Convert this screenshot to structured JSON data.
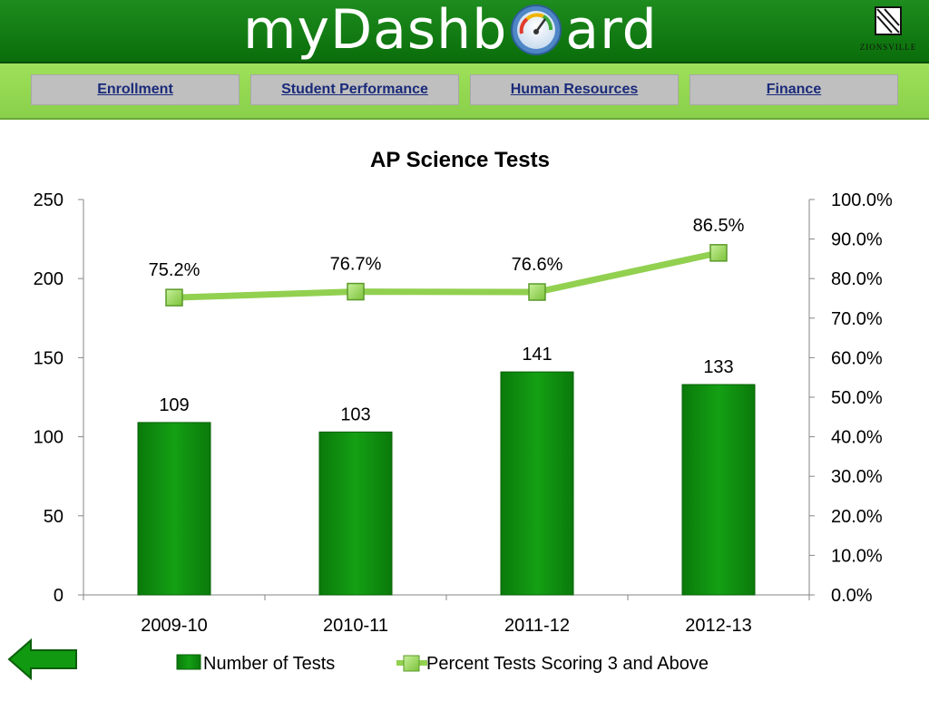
{
  "header": {
    "logo_before": "myDashb",
    "logo_after": "ard",
    "seal_text": "ZIONSVILLE"
  },
  "nav": {
    "items": [
      {
        "label": "Enrollment"
      },
      {
        "label": "Student Performance"
      },
      {
        "label": "Human Resources"
      },
      {
        "label": "Finance"
      }
    ]
  },
  "colors": {
    "header_green": "#0a7a0a",
    "nav_green": "#92d050",
    "bar_green": "#0a8a0a",
    "line_green": "#92d050"
  },
  "chart_data": {
    "type": "bar",
    "title": "AP Science Tests",
    "categories": [
      "2009-10",
      "2010-11",
      "2011-12",
      "2012-13"
    ],
    "series": [
      {
        "name": "Number of Tests",
        "type": "bar",
        "axis": "left",
        "values": [
          109,
          103,
          141,
          133
        ],
        "labels": [
          "109",
          "103",
          "141",
          "133"
        ]
      },
      {
        "name": "Percent Tests Scoring 3 and Above",
        "type": "line",
        "axis": "right",
        "values": [
          75.2,
          76.7,
          76.6,
          86.5
        ],
        "labels": [
          "75.2%",
          "76.7%",
          "76.6%",
          "86.5%"
        ]
      }
    ],
    "left_axis": {
      "min": 0,
      "max": 250,
      "ticks": [
        "0",
        "50",
        "100",
        "150",
        "200",
        "250"
      ]
    },
    "right_axis": {
      "min": 0,
      "max": 100,
      "ticks": [
        "0.0%",
        "10.0%",
        "20.0%",
        "30.0%",
        "40.0%",
        "50.0%",
        "60.0%",
        "70.0%",
        "80.0%",
        "90.0%",
        "100.0%"
      ]
    },
    "grid": false,
    "legend_position": "bottom"
  },
  "back_icon": "left-arrow-icon"
}
